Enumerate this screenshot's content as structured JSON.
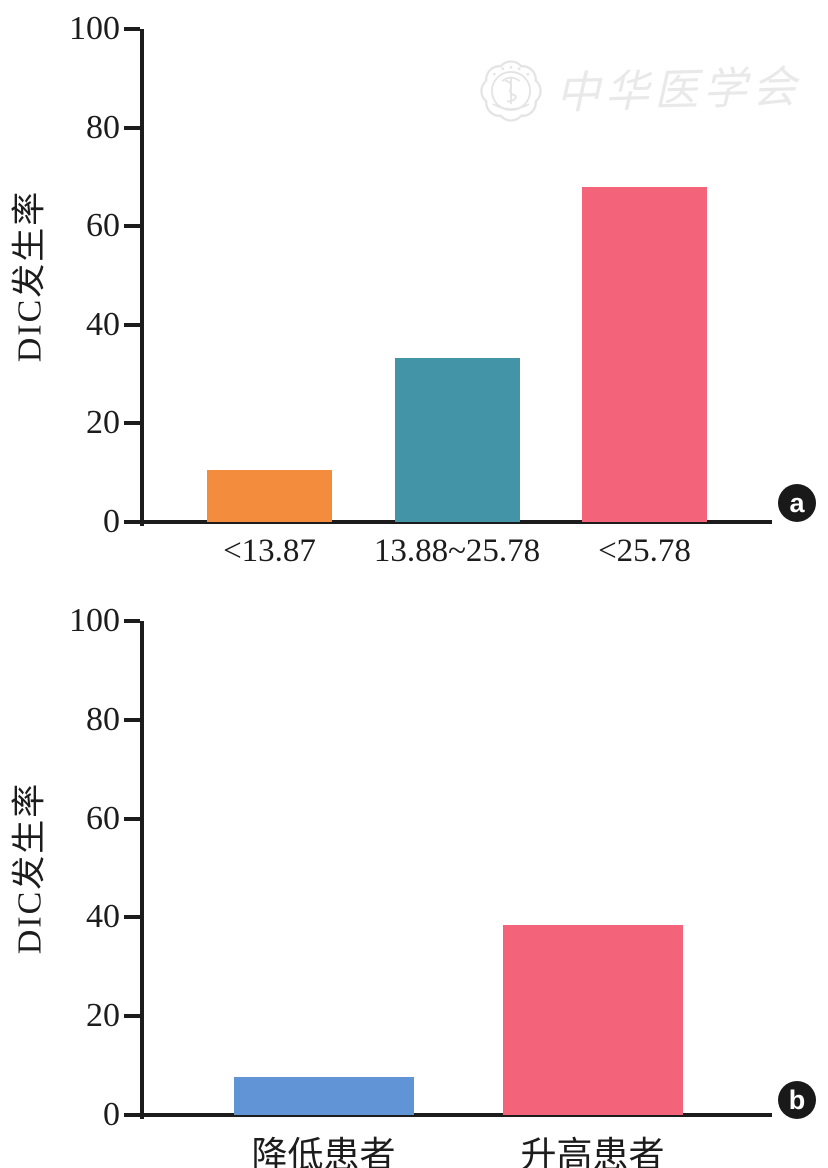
{
  "watermark": {
    "text": "中华医学会",
    "color": "#e9e9e9"
  },
  "axis_color": "#1c1c1c",
  "chart_data": [
    {
      "type": "bar",
      "panel_label": "a",
      "title": "",
      "xlabel": "",
      "ylabel": "DIC发生率",
      "categories": [
        "<13.87",
        "13.88~25.78",
        "<25.78"
      ],
      "values": [
        10.5,
        33.3,
        68
      ],
      "bar_colors": [
        "#F48C3E",
        "#4294A6",
        "#F3637A"
      ],
      "ylim": [
        0,
        100
      ],
      "yticks": [
        0,
        20,
        40,
        60,
        80,
        100
      ],
      "grid": false,
      "legend": null
    },
    {
      "type": "bar",
      "panel_label": "b",
      "title": "",
      "xlabel": "",
      "ylabel": "DIC发生率",
      "categories": [
        "降低患者",
        "升高患者"
      ],
      "values": [
        7.6,
        38.5
      ],
      "bar_colors": [
        "#6094D6",
        "#F3637A"
      ],
      "ylim": [
        0,
        100
      ],
      "yticks": [
        0,
        20,
        40,
        60,
        80,
        100
      ],
      "grid": false,
      "legend": null
    }
  ]
}
